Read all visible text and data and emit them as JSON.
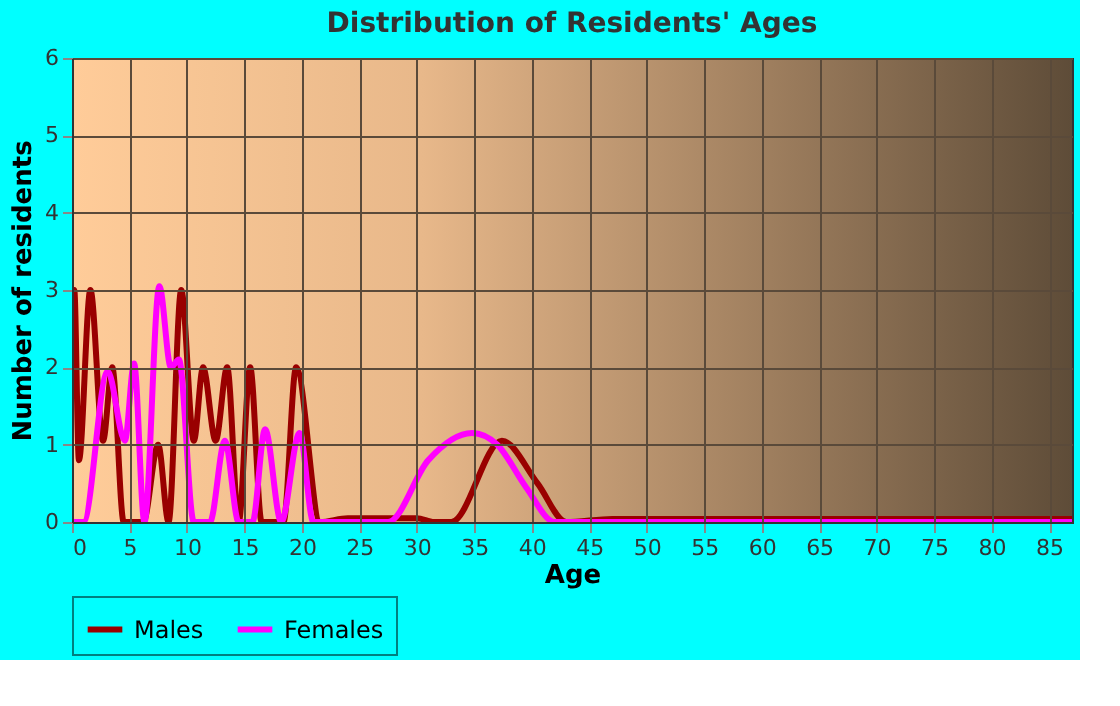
{
  "chart_data": {
    "type": "line",
    "title": "Distribution of Residents' Ages",
    "xlabel": "Age",
    "ylabel": "Number of residents",
    "xlim": [
      0,
      87
    ],
    "ylim": [
      0,
      6
    ],
    "xticks": [
      0,
      5,
      10,
      15,
      20,
      25,
      30,
      35,
      40,
      45,
      50,
      55,
      60,
      65,
      70,
      75,
      80,
      85
    ],
    "yticks": [
      0,
      1,
      2,
      3,
      4,
      5,
      6
    ],
    "grid": true,
    "legend": "bottom",
    "series": [
      {
        "name": "Males",
        "color": "#990000",
        "x": [
          0,
          0.2,
          0.6,
          1.6,
          2.7,
          3.5,
          4.5,
          6.2,
          7.5,
          8.4,
          9.5,
          10.6,
          11.4,
          12.5,
          13.5,
          14.5,
          15.5,
          16.5,
          18.4,
          19.5,
          21.6,
          24,
          27,
          30,
          31.5,
          33,
          37.4,
          40.5,
          43,
          47,
          60,
          87
        ],
        "values": [
          3,
          3,
          0.8,
          3,
          1.05,
          2,
          0,
          0,
          1,
          0,
          3,
          1.05,
          2,
          1.05,
          2,
          0,
          2,
          0,
          0,
          2,
          0,
          0.05,
          0.05,
          0.05,
          0,
          0,
          1.05,
          0.5,
          0,
          0.04,
          0.04,
          0.04
        ]
      },
      {
        "name": "Females",
        "color": "#ff00ff",
        "x": [
          0,
          0.3,
          1,
          3.1,
          4.6,
          5.4,
          6.3,
          7.6,
          8.6,
          9.3,
          10.6,
          12,
          13.3,
          14.5,
          15.7,
          16.8,
          18.2,
          19.8,
          21,
          27.5,
          31,
          34.8,
          37,
          39.5,
          42,
          87
        ],
        "values": [
          0,
          0,
          0,
          1.95,
          1.05,
          2.05,
          0,
          3.05,
          2,
          2.1,
          0,
          0,
          1.05,
          0,
          0,
          1.2,
          0,
          1.15,
          0,
          0,
          0.8,
          1.15,
          1,
          0.45,
          0,
          0
        ]
      }
    ]
  }
}
